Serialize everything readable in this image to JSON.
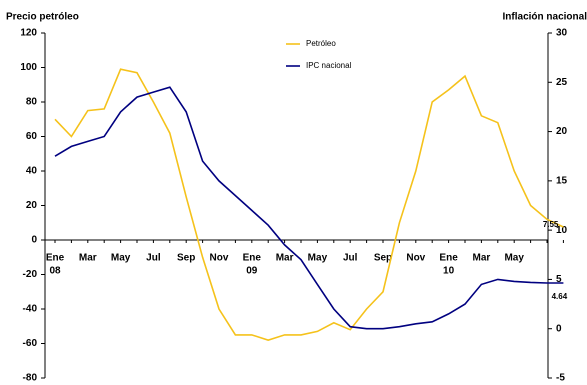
{
  "chart_data": {
    "type": "line",
    "y_label": "Precio petróleo",
    "y2_label": "Inflación nacional",
    "categories": [
      "Ene",
      null,
      "Mar",
      null,
      "May",
      null,
      "Jul",
      null,
      "Sep",
      null,
      "Nov",
      null,
      "Ene",
      null,
      "Mar",
      null,
      "May",
      null,
      "Jul",
      null,
      "Sep",
      null,
      "Nov",
      null,
      "Ene",
      null,
      "Mar",
      null,
      "May",
      null,
      null,
      null
    ],
    "category_years": [
      "08",
      null,
      null,
      null,
      null,
      null,
      null,
      null,
      null,
      null,
      null,
      null,
      "09",
      null,
      null,
      null,
      null,
      null,
      null,
      null,
      null,
      null,
      null,
      null,
      "10",
      null,
      null,
      null,
      null,
      null,
      null,
      null
    ],
    "series": [
      {
        "name": "Petróleo",
        "color": "#f5c21b",
        "axis": "y",
        "values": [
          70,
          60,
          75,
          76,
          99,
          97,
          80,
          62,
          25,
          -10,
          -40,
          -55,
          -55,
          -58,
          -55,
          -55,
          -53,
          -48,
          -52,
          -40,
          -30,
          10,
          40,
          80,
          87,
          95,
          72,
          68,
          40,
          20,
          12,
          7.55
        ],
        "value_labels": [
          null,
          null,
          null,
          null,
          null,
          null,
          null,
          null,
          null,
          null,
          null,
          null,
          null,
          null,
          null,
          null,
          null,
          null,
          null,
          null,
          null,
          null,
          null,
          null,
          null,
          null,
          null,
          null,
          null,
          null,
          null,
          "7.55"
        ]
      },
      {
        "name": "IPC nacional",
        "color": "#000080",
        "axis": "y2",
        "values": [
          17.5,
          18.5,
          19,
          19.5,
          22,
          23.5,
          24,
          24.5,
          22,
          17,
          15,
          13.5,
          12,
          10.5,
          8.5,
          7,
          4.5,
          2,
          0.2,
          0,
          0,
          0.2,
          0.5,
          0.7,
          1.5,
          2.5,
          4.5,
          5,
          4.8,
          4.7,
          4.64,
          4.64
        ],
        "value_labels": [
          null,
          null,
          null,
          null,
          null,
          null,
          null,
          null,
          null,
          null,
          null,
          null,
          null,
          null,
          null,
          null,
          null,
          null,
          null,
          null,
          null,
          null,
          null,
          null,
          null,
          null,
          null,
          null,
          null,
          null,
          null,
          "4.64"
        ]
      }
    ],
    "ylim": [
      -80,
      120
    ],
    "yticks": [
      -80,
      -60,
      -40,
      -20,
      0,
      20,
      40,
      60,
      80,
      100,
      120
    ],
    "y2lim": [
      -5,
      30
    ],
    "y2ticks": [
      -5,
      0,
      5,
      10,
      15,
      20,
      25,
      30
    ],
    "legend": "top"
  }
}
